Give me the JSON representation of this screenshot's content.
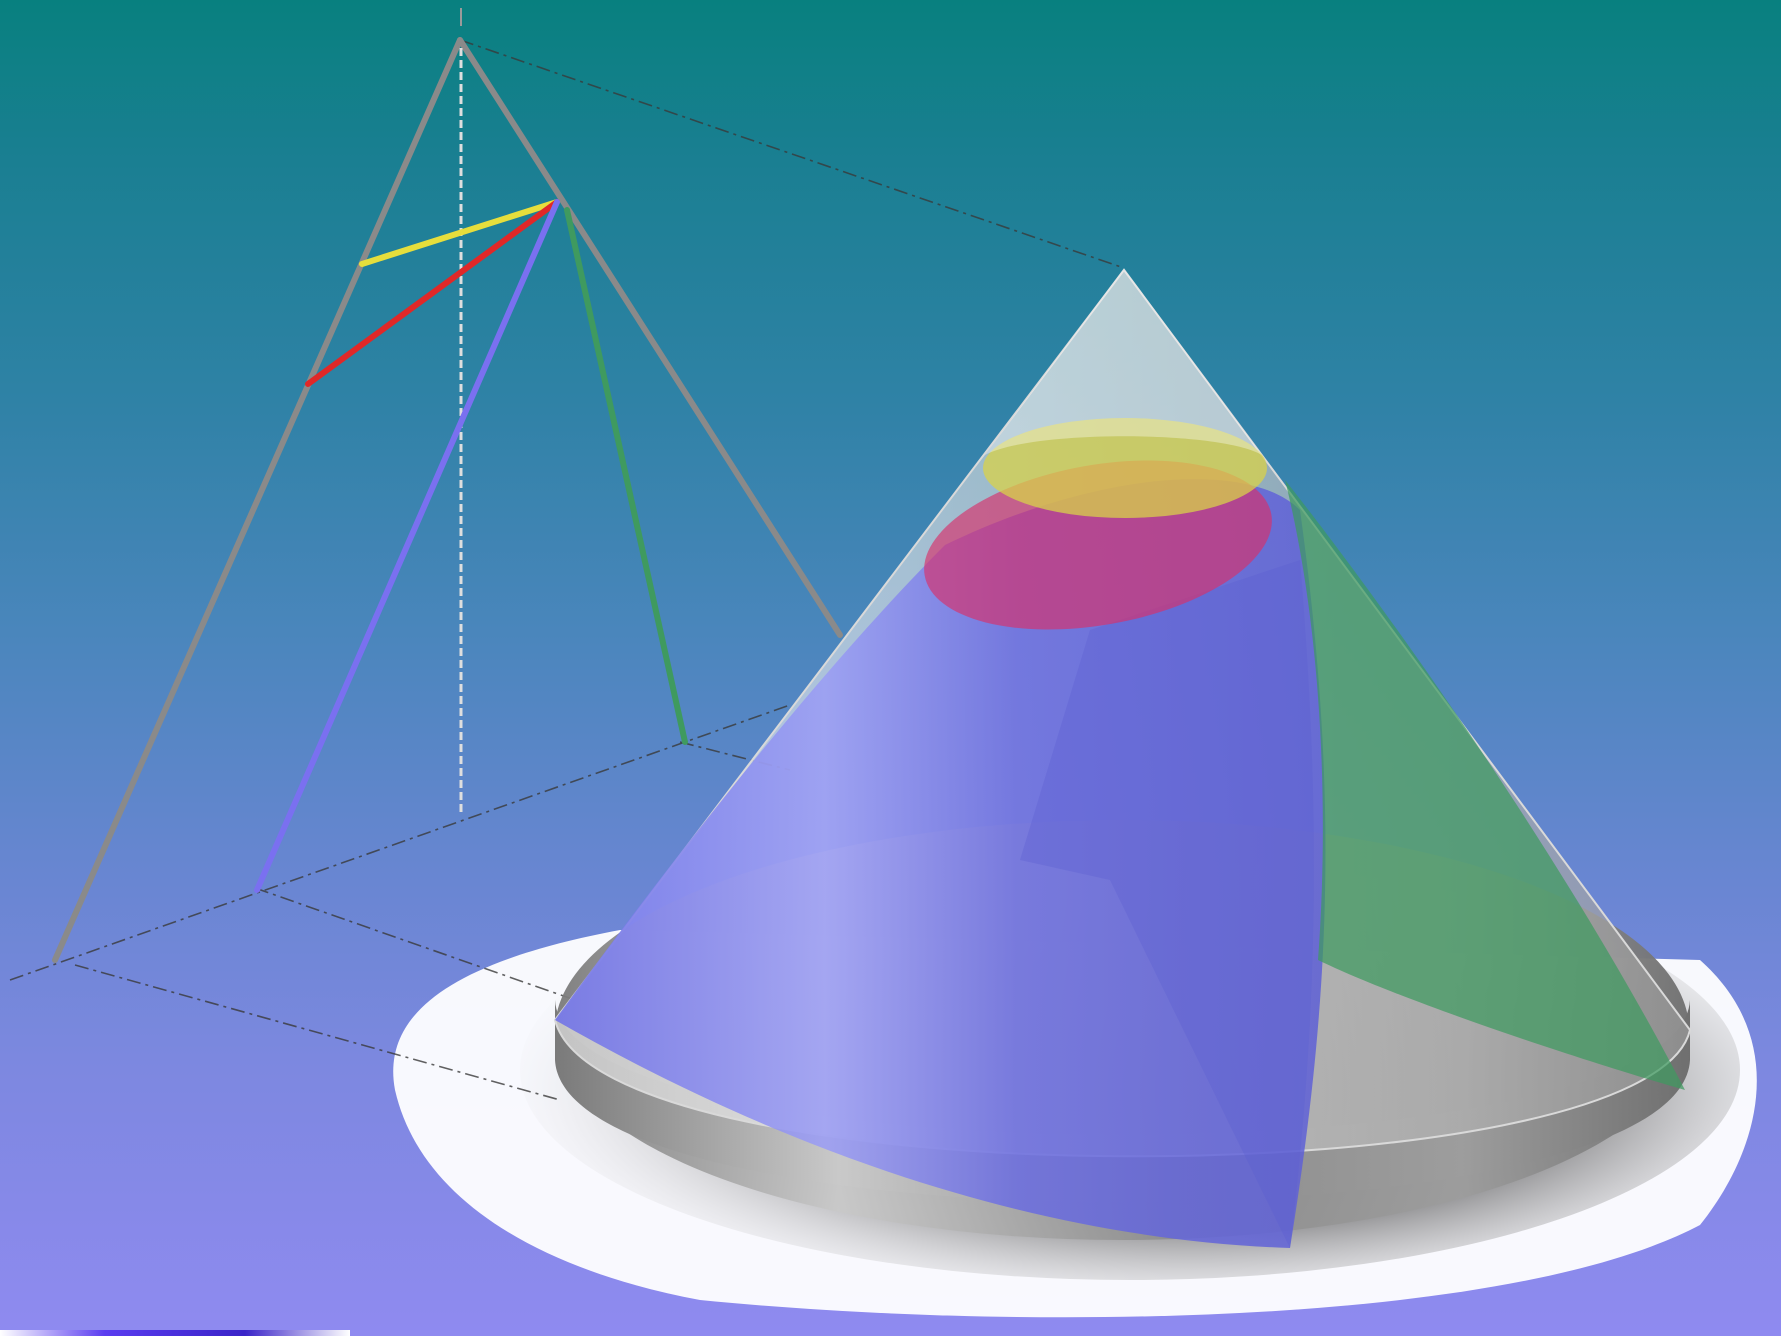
{
  "diagram": {
    "subject": "conic-sections",
    "colors": {
      "background_top": "#08807f",
      "background_bottom": "#8f8af0",
      "cone_outline": "#8a8a8a",
      "axis_dashed": "#cfcfcf",
      "circle_section": "#e6de3c",
      "ellipse_section": "#e02828",
      "parabola_section": "#7a70f0",
      "hyperbola_section": "#3f9a5f",
      "ground_plane": "#ffffff",
      "cone_surface": "#c8c8c8"
    },
    "sections": [
      {
        "name": "circle",
        "color": "#e6de3c"
      },
      {
        "name": "ellipse",
        "color": "#e02828"
      },
      {
        "name": "parabola",
        "color": "#7a70f0"
      },
      {
        "name": "hyperbola",
        "color": "#3f9a5f"
      }
    ]
  }
}
